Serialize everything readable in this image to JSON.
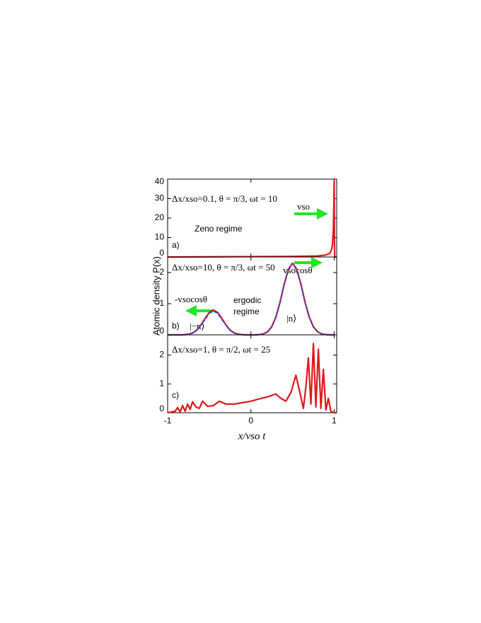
{
  "chart_data": [
    {
      "type": "line",
      "annotations": [
        "Δx/xso=0.1,   θ = π/3, ωt = 10",
        "vso",
        "Zeno regime",
        "a)"
      ],
      "x": [
        -1,
        -0.5,
        0,
        0.5,
        0.8,
        0.9,
        0.95,
        0.97,
        0.98,
        0.99,
        0.995,
        1.0,
        1.003,
        1.006,
        1.03
      ],
      "series": [
        {
          "color": "#e3161b",
          "values": [
            0,
            0.1,
            0.2,
            0.3,
            0.5,
            1,
            2,
            4,
            7,
            14,
            25,
            40,
            10,
            0,
            0
          ]
        }
      ],
      "xlim": [
        -1,
        1.03
      ],
      "xticks": [
        -1,
        0,
        1
      ],
      "ylim": [
        0,
        40
      ],
      "yticks": [
        0,
        10,
        20,
        30,
        40
      ]
    },
    {
      "type": "line",
      "ylabel": "Atomic density P(x)",
      "annotations": [
        "Δx/xso=10,  θ = π/3, ωt = 50",
        "vsocosθ",
        "-vsocosθ",
        "ergodic",
        "regime",
        "|−n⟩",
        "|n⟩",
        "b)"
      ],
      "x": [
        -1,
        -0.95,
        -0.9,
        -0.85,
        -0.8,
        -0.75,
        -0.7,
        -0.65,
        -0.6,
        -0.55,
        -0.5,
        -0.45,
        -0.4,
        -0.35,
        -0.3,
        -0.25,
        -0.2,
        -0.15,
        -0.1,
        -0.05,
        0,
        0.05,
        0.1,
        0.15,
        0.2,
        0.25,
        0.3,
        0.35,
        0.4,
        0.45,
        0.5,
        0.55,
        0.6,
        0.65,
        0.7,
        0.75,
        0.8,
        0.85,
        0.9,
        0.95,
        1
      ],
      "series": [
        {
          "color": "#e3161b",
          "values": [
            0,
            0,
            0,
            0,
            0.005,
            0.02,
            0.06,
            0.15,
            0.32,
            0.53,
            0.72,
            0.8,
            0.72,
            0.53,
            0.32,
            0.15,
            0.06,
            0.02,
            0.005,
            0,
            0,
            0,
            0.01,
            0.03,
            0.1,
            0.26,
            0.57,
            1.05,
            1.63,
            2.11,
            2.3,
            2.11,
            1.63,
            1.05,
            0.57,
            0.26,
            0.1,
            0.03,
            0.01,
            0,
            0
          ]
        },
        {
          "color": "#3344cc",
          "dashed": true,
          "values": [
            0,
            0,
            0,
            0,
            0.005,
            0.02,
            0.06,
            0.15,
            0.32,
            0.5,
            0.7,
            0.76,
            0.7,
            0.5,
            0.32,
            0.15,
            0.06,
            0.02,
            0.005,
            0,
            0,
            0,
            0.01,
            0.03,
            0.1,
            0.26,
            0.57,
            1.05,
            1.63,
            2.08,
            2.3,
            2.08,
            1.63,
            1.05,
            0.57,
            0.26,
            0.1,
            0.03,
            0.01,
            0,
            0
          ]
        }
      ],
      "xlim": [
        -1,
        1.03
      ],
      "xticks": [
        -1,
        0,
        1
      ],
      "ylim": [
        0,
        2.5
      ],
      "yticks": [
        0,
        1,
        2
      ]
    },
    {
      "type": "line",
      "xlabel": "x/vso t",
      "annotations": [
        "Δx/xso=1,    θ = π/2, ωt = 25",
        "c)"
      ],
      "x": [
        -1,
        -0.95,
        -0.91,
        -0.88,
        -0.85,
        -0.82,
        -0.79,
        -0.76,
        -0.73,
        -0.7,
        -0.66,
        -0.62,
        -0.58,
        -0.52,
        -0.45,
        -0.38,
        -0.3,
        -0.2,
        -0.1,
        0,
        0.1,
        0.2,
        0.3,
        0.36,
        0.42,
        0.48,
        0.54,
        0.6,
        0.63,
        0.66,
        0.69,
        0.72,
        0.75,
        0.78,
        0.81,
        0.84,
        0.87,
        0.9,
        0.93,
        0.96,
        1.0,
        1.03
      ],
      "series": [
        {
          "color": "#e3161b",
          "values": [
            0,
            0.03,
            0.05,
            0.18,
            0.03,
            0.25,
            0.05,
            0.3,
            0.12,
            0.38,
            0.2,
            0.15,
            0.4,
            0.22,
            0.25,
            0.4,
            0.3,
            0.3,
            0.35,
            0.4,
            0.48,
            0.55,
            0.65,
            0.5,
            0.4,
            0.7,
            1.3,
            0.55,
            0.15,
            0.9,
            1.9,
            0.3,
            2.4,
            0.2,
            2.2,
            0.15,
            1.5,
            0.1,
            0.5,
            0.05,
            0,
            0
          ]
        }
      ],
      "xlim": [
        -1,
        1.03
      ],
      "xticks": [
        -1,
        0,
        1
      ],
      "ylim": [
        0,
        2.7
      ],
      "yticks": [
        0,
        1,
        2
      ]
    }
  ]
}
